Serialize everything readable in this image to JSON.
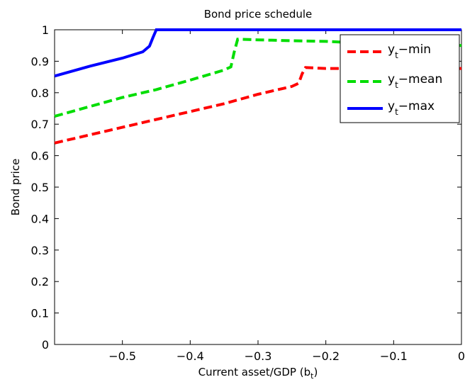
{
  "chart_data": {
    "type": "line",
    "title": "Bond price schedule",
    "xlabel_main": "Current asset/GDP (b",
    "xlabel_sub": "t",
    "xlabel_tail": ")",
    "ylabel": "Bond price",
    "xlim": [
      -0.6,
      0
    ],
    "ylim": [
      0,
      1
    ],
    "xticks": [
      -0.5,
      -0.4,
      -0.3,
      -0.2,
      -0.1,
      0
    ],
    "xtick_labels": [
      "−0.5",
      "−0.4",
      "−0.3",
      "−0.2",
      "−0.1",
      "0"
    ],
    "yticks": [
      0,
      0.1,
      0.2,
      0.3,
      0.4,
      0.5,
      0.6,
      0.7,
      0.8,
      0.9,
      1
    ],
    "ytick_labels": [
      "0",
      "0.1",
      "0.2",
      "0.3",
      "0.4",
      "0.5",
      "0.6",
      "0.7",
      "0.8",
      "0.9",
      "1"
    ],
    "legend_position": "top-right",
    "grid": false,
    "series": [
      {
        "name_main": "y",
        "name_sub": "t",
        "name_tail": "−min",
        "color": "#ff0000",
        "style": "dashed",
        "x": [
          -0.6,
          -0.55,
          -0.5,
          -0.45,
          -0.4,
          -0.35,
          -0.3,
          -0.25,
          -0.24,
          -0.235,
          -0.23,
          -0.2,
          -0.15,
          -0.1,
          -0.05,
          0
        ],
        "y": [
          0.64,
          0.665,
          0.69,
          0.715,
          0.74,
          0.765,
          0.795,
          0.82,
          0.83,
          0.86,
          0.88,
          0.877,
          0.877,
          0.877,
          0.877,
          0.877
        ]
      },
      {
        "name_main": "y",
        "name_sub": "t",
        "name_tail": "−mean",
        "color": "#00dd00",
        "style": "dashed",
        "x": [
          -0.6,
          -0.55,
          -0.5,
          -0.45,
          -0.4,
          -0.35,
          -0.34,
          -0.335,
          -0.33,
          -0.3,
          -0.25,
          -0.2,
          -0.15,
          -0.1,
          -0.05,
          0
        ],
        "y": [
          0.725,
          0.755,
          0.785,
          0.81,
          0.84,
          0.872,
          0.882,
          0.93,
          0.97,
          0.968,
          0.965,
          0.963,
          0.958,
          0.955,
          0.953,
          0.95
        ]
      },
      {
        "name_main": "y",
        "name_sub": "t",
        "name_tail": "−max",
        "color": "#0000ff",
        "style": "solid",
        "x": [
          -0.6,
          -0.55,
          -0.5,
          -0.47,
          -0.46,
          -0.455,
          -0.45,
          -0.4,
          -0.3,
          -0.2,
          -0.1,
          0
        ],
        "y": [
          0.853,
          0.883,
          0.91,
          0.93,
          0.948,
          0.975,
          1.0,
          1.0,
          1.0,
          1.0,
          1.0,
          1.0
        ]
      }
    ]
  }
}
